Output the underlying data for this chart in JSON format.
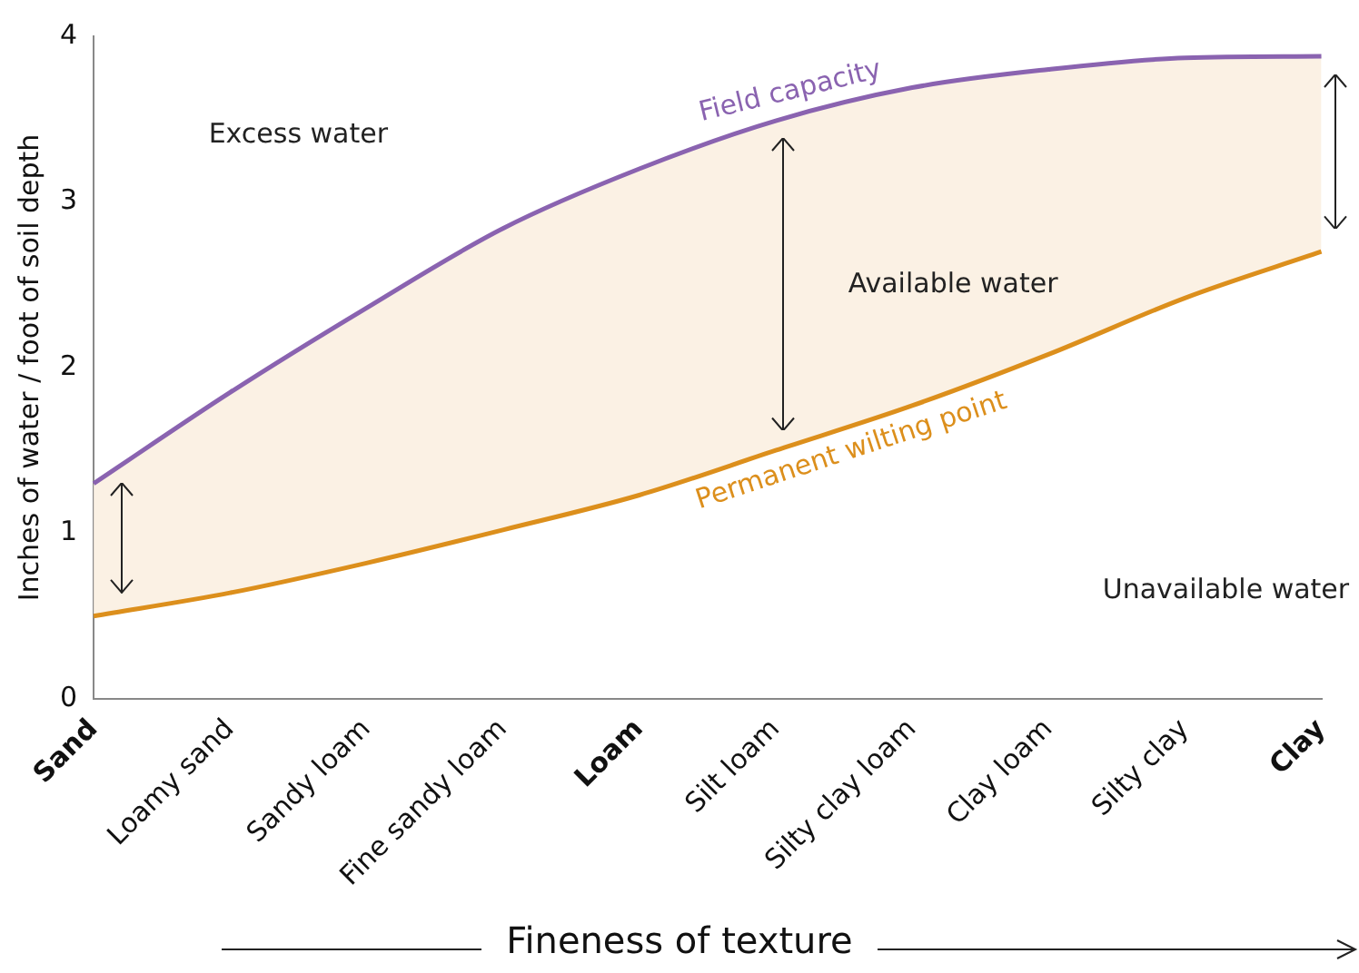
{
  "chart_data": {
    "type": "line",
    "xlabel": "Fineness of texture",
    "ylabel": "Inches of water / foot of soil depth",
    "categories": [
      "Sand",
      "Loamy sand",
      "Sandy loam",
      "Fine sandy loam",
      "Loam",
      "Silt loam",
      "Silty clay loam",
      "Clay loam",
      "Silty clay",
      "Clay"
    ],
    "series": [
      {
        "name": "Field capacity",
        "color": "#8a63b0",
        "values": [
          1.3,
          1.85,
          2.36,
          2.84,
          3.2,
          3.49,
          3.69,
          3.8,
          3.87,
          3.88
        ]
      },
      {
        "name": "Permanent wilting point",
        "color": "#dc8f1c",
        "values": [
          0.5,
          0.64,
          0.82,
          1.02,
          1.23,
          1.5,
          1.77,
          2.08,
          2.42,
          2.7
        ]
      }
    ],
    "ylim": [
      0,
      4
    ],
    "yticks": [
      0,
      1,
      2,
      3,
      4
    ],
    "grid": false,
    "legend": false,
    "marker": "none",
    "line_style": "solid",
    "annotations": [
      "Excess water",
      "Available water",
      "Unavailable water"
    ]
  }
}
